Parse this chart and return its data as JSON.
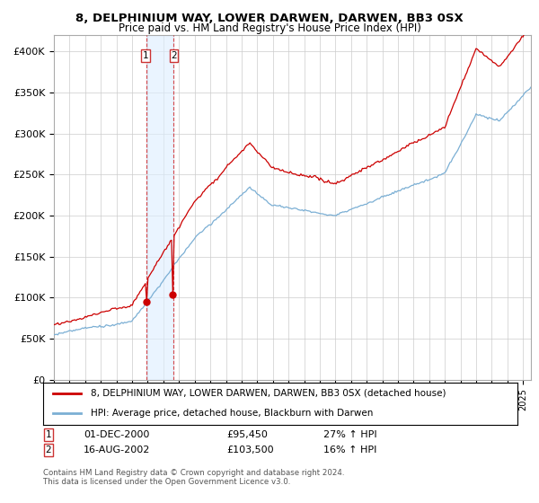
{
  "title": "8, DELPHINIUM WAY, LOWER DARWEN, DARWEN, BB3 0SX",
  "subtitle": "Price paid vs. HM Land Registry's House Price Index (HPI)",
  "ylabel_ticks": [
    "£0",
    "£50K",
    "£100K",
    "£150K",
    "£200K",
    "£250K",
    "£300K",
    "£350K",
    "£400K"
  ],
  "ylabel_values": [
    0,
    50000,
    100000,
    150000,
    200000,
    250000,
    300000,
    350000,
    400000
  ],
  "ylim": [
    0,
    420000
  ],
  "xlim_start": 1995.0,
  "xlim_end": 2025.5,
  "sale1_date": 2000.92,
  "sale1_price": 95450,
  "sale2_date": 2002.62,
  "sale2_price": 103500,
  "line1_color": "#cc0000",
  "line2_color": "#7bafd4",
  "shading_color": "#ddeeff",
  "vline_color": "#cc0000",
  "legend1_label": "8, DELPHINIUM WAY, LOWER DARWEN, DARWEN, BB3 0SX (detached house)",
  "legend2_label": "HPI: Average price, detached house, Blackburn with Darwen",
  "sale1_date_str": "01-DEC-2000",
  "sale1_price_str": "£95,450",
  "sale1_hpi_str": "27% ↑ HPI",
  "sale2_date_str": "16-AUG-2002",
  "sale2_price_str": "£103,500",
  "sale2_hpi_str": "16% ↑ HPI",
  "footer": "Contains HM Land Registry data © Crown copyright and database right 2024.\nThis data is licensed under the Open Government Licence v3.0.",
  "background_color": "#ffffff",
  "grid_color": "#cccccc"
}
